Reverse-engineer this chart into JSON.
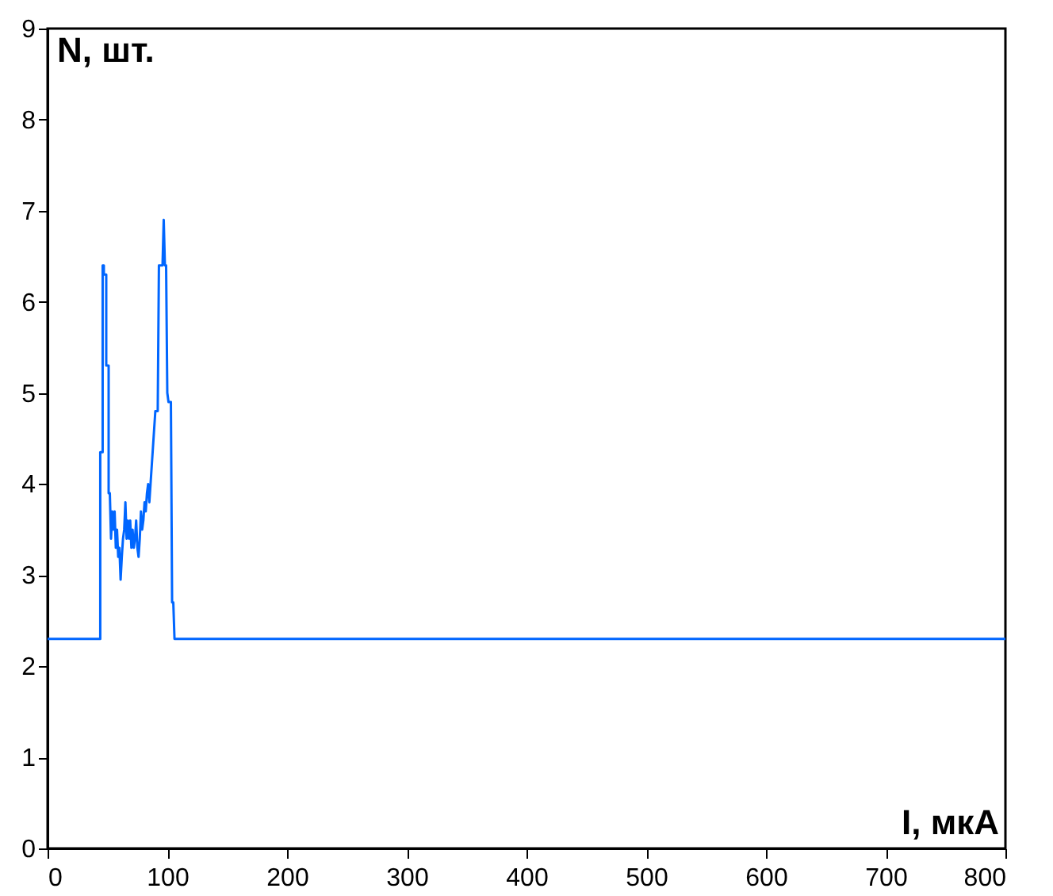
{
  "chart_data": {
    "type": "line",
    "xlabel": "I, мкА",
    "ylabel": "N, шт.",
    "xlim": [
      0,
      800
    ],
    "xticks": [
      0,
      100,
      200,
      300,
      400,
      500,
      600,
      700,
      800
    ],
    "ylim": [
      0,
      9
    ],
    "yticks": [
      0,
      1,
      2,
      3,
      4,
      5,
      6,
      7,
      8,
      9
    ],
    "grid": false,
    "marker": "none",
    "line_style": "solid",
    "series": [
      {
        "color": "#0066ff",
        "x": [
          0,
          44,
          44,
          46,
          46,
          47,
          47,
          49,
          49,
          51,
          51,
          52,
          53,
          54,
          55,
          56,
          57,
          58,
          59,
          60,
          61,
          62,
          63,
          64,
          65,
          66,
          67,
          68,
          69,
          70,
          71,
          72,
          73,
          74,
          75,
          76,
          77,
          78,
          79,
          80,
          81,
          82,
          83,
          84,
          85,
          86,
          87,
          88,
          89,
          90,
          92,
          93,
          96,
          97,
          98,
          99,
          100,
          101,
          103,
          104,
          105,
          106,
          107,
          800
        ],
        "values": [
          2.3,
          2.3,
          4.35,
          4.35,
          6.4,
          6.4,
          6.3,
          6.3,
          5.3,
          5.3,
          3.9,
          3.9,
          3.4,
          3.7,
          3.5,
          3.7,
          3.3,
          3.5,
          3.2,
          3.3,
          2.95,
          3.2,
          3.4,
          3.5,
          3.8,
          3.4,
          3.6,
          3.4,
          3.6,
          3.3,
          3.5,
          3.3,
          3.4,
          3.6,
          3.3,
          3.2,
          3.4,
          3.7,
          3.5,
          3.6,
          3.8,
          3.7,
          3.9,
          4.0,
          3.8,
          4.0,
          4.2,
          4.4,
          4.6,
          4.8,
          4.8,
          6.4,
          6.4,
          6.9,
          6.4,
          6.4,
          5.0,
          4.9,
          4.9,
          2.7,
          2.7,
          2.3,
          2.3,
          2.3
        ]
      }
    ]
  }
}
